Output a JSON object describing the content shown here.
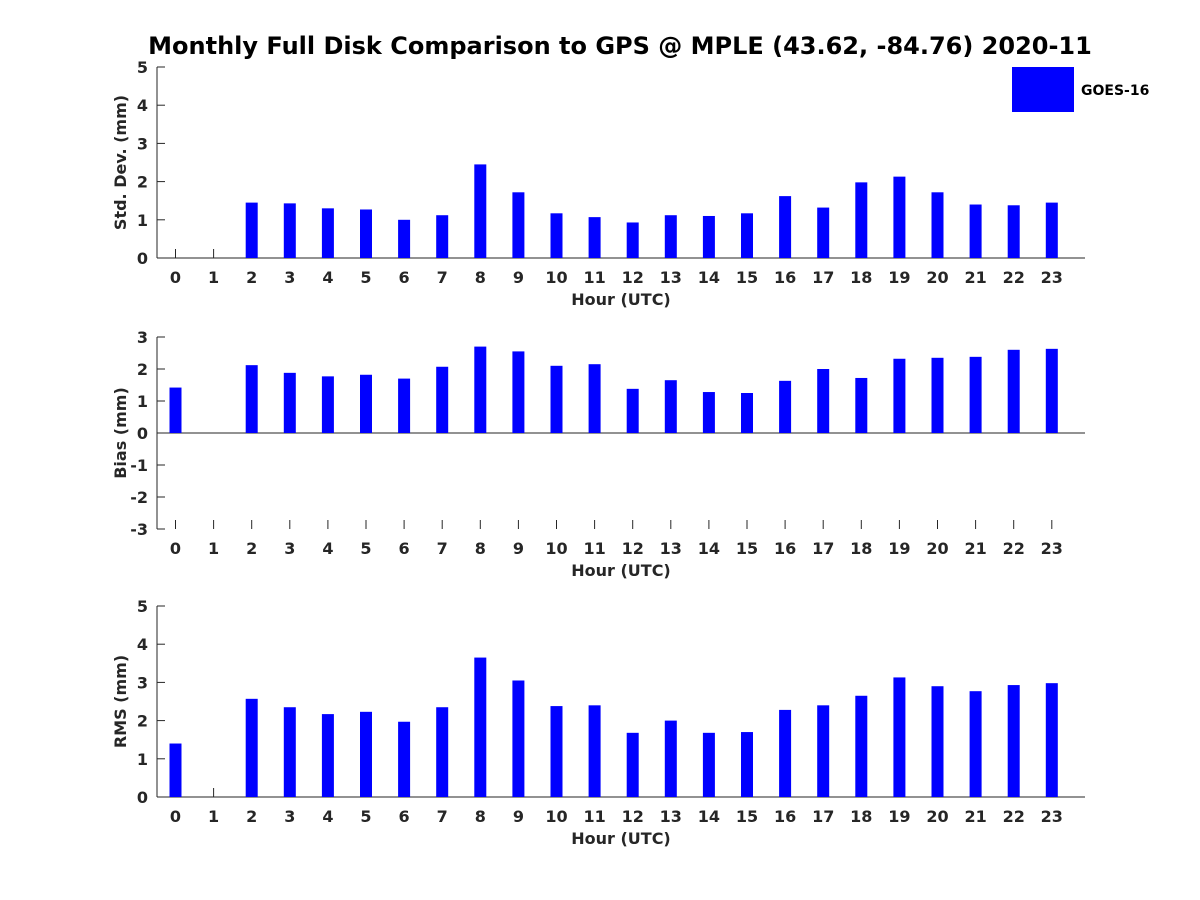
{
  "title": "Monthly Full Disk Comparison to GPS @ MPLE (43.62, -84.76) 2020-11",
  "legend": {
    "label": "GOES-16",
    "color": "#0000ff",
    "placement": "top-right"
  },
  "chart_data": [
    {
      "type": "bar",
      "xlabel": "Hour (UTC)",
      "ylabel": "Std. Dev. (mm)",
      "ylim": [
        0,
        5
      ],
      "yticks": [
        "0",
        "1",
        "2",
        "3",
        "4",
        "5"
      ],
      "categories": [
        "0",
        "1",
        "2",
        "3",
        "4",
        "5",
        "6",
        "7",
        "8",
        "9",
        "10",
        "11",
        "12",
        "13",
        "14",
        "15",
        "16",
        "17",
        "18",
        "19",
        "20",
        "21",
        "22",
        "23"
      ],
      "series": [
        {
          "name": "GOES-16",
          "values": [
            null,
            null,
            1.45,
            1.43,
            1.3,
            1.27,
            1.0,
            1.12,
            2.45,
            1.72,
            1.17,
            1.07,
            0.93,
            1.12,
            1.1,
            1.17,
            1.62,
            1.32,
            1.98,
            2.13,
            1.72,
            1.4,
            1.38,
            1.45
          ]
        }
      ],
      "color": "#0000ff"
    },
    {
      "type": "bar",
      "xlabel": "Hour (UTC)",
      "ylabel": "Bias (mm)",
      "ylim": [
        -3,
        3
      ],
      "yticks": [
        "-3",
        "-2",
        "-1",
        "0",
        "1",
        "2",
        "3"
      ],
      "categories": [
        "0",
        "1",
        "2",
        "3",
        "4",
        "5",
        "6",
        "7",
        "8",
        "9",
        "10",
        "11",
        "12",
        "13",
        "14",
        "15",
        "16",
        "17",
        "18",
        "19",
        "20",
        "21",
        "22",
        "23"
      ],
      "series": [
        {
          "name": "GOES-16",
          "values": [
            1.42,
            null,
            2.12,
            1.88,
            1.77,
            1.82,
            1.7,
            2.07,
            2.7,
            2.55,
            2.1,
            2.15,
            1.38,
            1.65,
            1.28,
            1.25,
            1.63,
            2.0,
            1.72,
            2.32,
            2.35,
            2.38,
            2.6,
            2.63
          ]
        }
      ],
      "color": "#0000ff"
    },
    {
      "type": "bar",
      "xlabel": "Hour (UTC)",
      "ylabel": "RMS (mm)",
      "ylim": [
        0,
        5
      ],
      "yticks": [
        "0",
        "1",
        "2",
        "3",
        "4",
        "5"
      ],
      "categories": [
        "0",
        "1",
        "2",
        "3",
        "4",
        "5",
        "6",
        "7",
        "8",
        "9",
        "10",
        "11",
        "12",
        "13",
        "14",
        "15",
        "16",
        "17",
        "18",
        "19",
        "20",
        "21",
        "22",
        "23"
      ],
      "series": [
        {
          "name": "GOES-16",
          "values": [
            1.4,
            null,
            2.57,
            2.35,
            2.17,
            2.23,
            1.97,
            2.35,
            3.65,
            3.05,
            2.38,
            2.4,
            1.68,
            2.0,
            1.68,
            1.7,
            2.28,
            2.4,
            2.65,
            3.13,
            2.9,
            2.77,
            2.93,
            2.98
          ]
        }
      ],
      "color": "#0000ff"
    }
  ]
}
